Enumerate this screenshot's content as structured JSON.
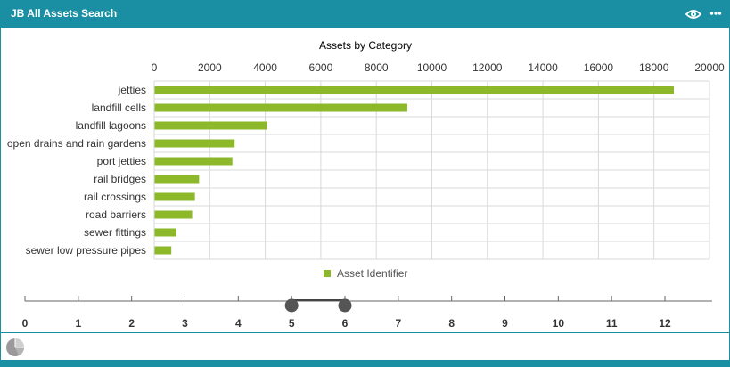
{
  "panel": {
    "title": "JB All Assets Search",
    "header_color": "#1a8fa3",
    "icons": [
      "eye-icon",
      "more-horizontal-icon",
      "pie-chart-icon"
    ]
  },
  "chart_data": {
    "type": "bar",
    "orientation": "horizontal",
    "title": "Assets by Category",
    "categories": [
      "jetties",
      "landfill cells",
      "landfill lagoons",
      "open drains and rain gardens",
      "port jetties",
      "rail bridges",
      "rail crossings",
      "road barriers",
      "sewer fittings",
      "sewer low pressure pipes"
    ],
    "series": [
      {
        "name": "Asset Identifier",
        "color": "#8cb82a",
        "values": [
          18700,
          9100,
          4050,
          2880,
          2800,
          1600,
          1450,
          1350,
          780,
          600
        ]
      }
    ],
    "xaxis_position": "top",
    "xlim": [
      0,
      20000
    ],
    "xticks": [
      "0",
      "2000",
      "4000",
      "6000",
      "8000",
      "10000",
      "12000",
      "14000",
      "16000",
      "18000",
      "20000"
    ],
    "grid": true,
    "legend_position": "bottom-center"
  },
  "slider": {
    "ticks": [
      "0",
      "1",
      "2",
      "3",
      "4",
      "5",
      "6",
      "7",
      "8",
      "9",
      "10",
      "11",
      "12"
    ],
    "range": [
      5,
      6
    ],
    "handle_color": "#555555"
  }
}
